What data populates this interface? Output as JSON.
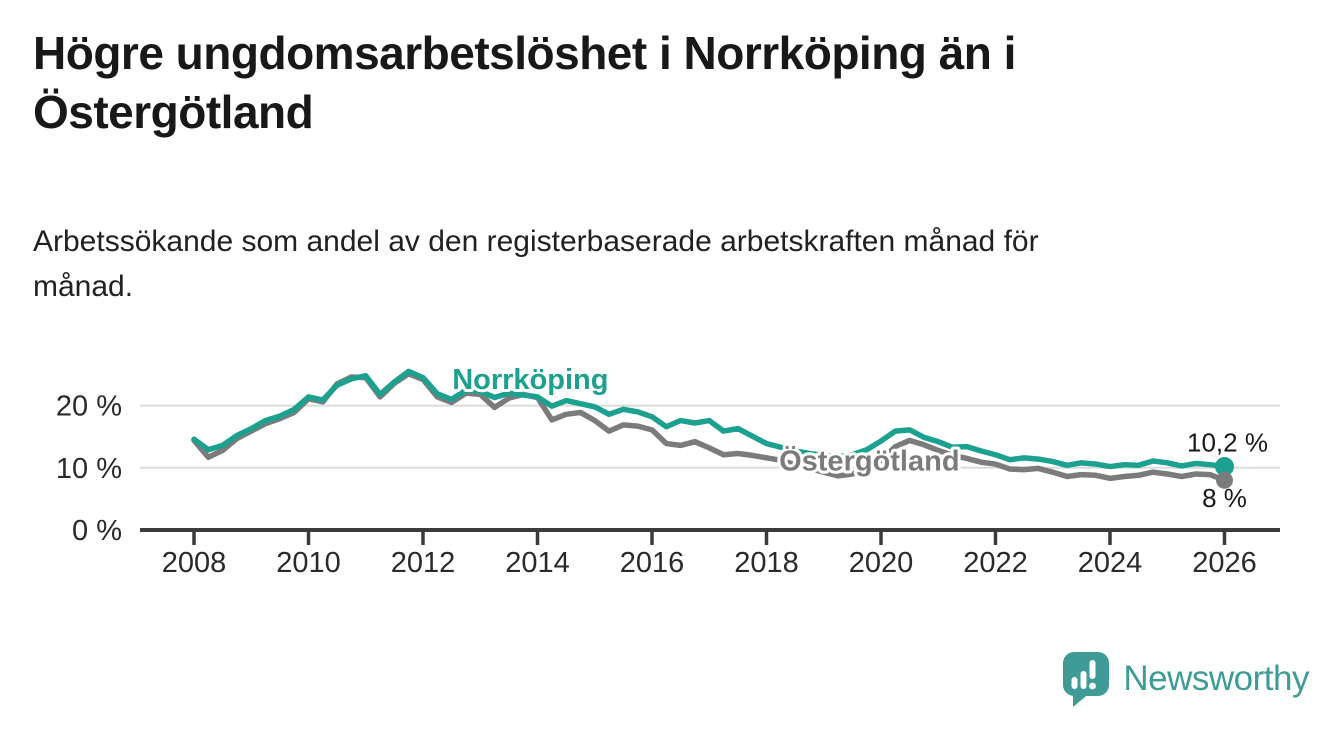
{
  "header": {
    "title_line1": "Högre ungdomsarbetslöshet i Norrköping än i",
    "title_line2": "Östergötland",
    "subtitle_line1": "Arbetssökande som andel av den registerbaserade arbetskraften månad för",
    "subtitle_line2": "månad."
  },
  "branding": {
    "logo_text": "Newsworthy"
  },
  "colors": {
    "accent_teal": "#1ca08f",
    "series_gray": "#7b7b7b",
    "grid": "#dbdbdb",
    "axis": "#3b3b3b",
    "text_dark": "#1a1a1a",
    "logo_teal": "#3e9b96"
  },
  "chart_data": {
    "type": "line",
    "title": "Högre ungdomsarbetslöshet i Norrköping än i Östergötland",
    "subtitle": "Arbetssökande som andel av den registerbaserade arbetskraften månad för månad.",
    "xlabel": "",
    "ylabel": "",
    "xlim": [
      2007.2,
      2027
    ],
    "ylim": [
      0,
      27
    ],
    "grid": "horizontal",
    "legend_position": "inline-labels",
    "xticks": [
      2008,
      2010,
      2012,
      2014,
      2016,
      2018,
      2020,
      2022,
      2024,
      2026
    ],
    "yticks": [
      {
        "value": 0,
        "label": "0 %"
      },
      {
        "value": 10,
        "label": "10 %"
      },
      {
        "value": 20,
        "label": "20 %"
      }
    ],
    "x": [
      2008,
      2008.25,
      2008.5,
      2008.75,
      2009,
      2009.25,
      2009.5,
      2009.75,
      2010,
      2010.25,
      2010.5,
      2010.75,
      2011,
      2011.25,
      2011.5,
      2011.75,
      2012,
      2012.25,
      2012.5,
      2012.75,
      2013,
      2013.25,
      2013.5,
      2013.75,
      2014,
      2014.25,
      2014.5,
      2014.75,
      2015,
      2015.25,
      2015.5,
      2015.75,
      2016,
      2016.25,
      2016.5,
      2016.75,
      2017,
      2017.25,
      2017.5,
      2017.75,
      2018,
      2018.25,
      2018.5,
      2018.75,
      2019,
      2019.25,
      2019.5,
      2019.75,
      2020,
      2020.25,
      2020.5,
      2020.75,
      2021,
      2021.25,
      2021.5,
      2021.75,
      2022,
      2022.25,
      2022.5,
      2022.75,
      2023,
      2023.25,
      2023.5,
      2023.75,
      2024,
      2024.25,
      2024.5,
      2024.75,
      2025,
      2025.25,
      2025.5,
      2025.75,
      2026
    ],
    "series": [
      {
        "name": "Norrköping",
        "color": "#1ca08f",
        "end_value": 10.2,
        "end_label": "10,2 %",
        "label_pos": {
          "x": 2012.51,
          "y": 22.7
        },
        "values": [
          14.6,
          12.9,
          13.6,
          15.2,
          16.3,
          17.6,
          18.3,
          19.4,
          21.4,
          20.9,
          23.3,
          24.3,
          24.8,
          21.8,
          23.8,
          25.5,
          24.5,
          21.9,
          21.0,
          22.5,
          22.3,
          21.3,
          22.0,
          21.7,
          21.4,
          19.9,
          20.8,
          20.3,
          19.8,
          18.6,
          19.4,
          19.0,
          18.2,
          16.6,
          17.6,
          17.2,
          17.6,
          15.9,
          16.3,
          15.1,
          13.9,
          13.3,
          12.7,
          12.3,
          12.0,
          11.8,
          12.1,
          12.9,
          14.3,
          15.9,
          16.1,
          14.9,
          14.2,
          13.3,
          13.4,
          12.7,
          12.1,
          11.3,
          11.6,
          11.4,
          11.0,
          10.4,
          10.8,
          10.6,
          10.2,
          10.5,
          10.4,
          11.1,
          10.8,
          10.3,
          10.7,
          10.5,
          10.2
        ]
      },
      {
        "name": "Östergötland",
        "color": "#7b7b7b",
        "end_value": 8.0,
        "end_label": "8 %",
        "label_pos": {
          "x": 2018.22,
          "y": 9.6
        },
        "values": [
          14.4,
          11.7,
          12.8,
          14.7,
          15.9,
          17.1,
          17.9,
          18.9,
          21.1,
          20.6,
          23.5,
          24.6,
          24.5,
          21.4,
          23.6,
          25.1,
          24.2,
          21.4,
          20.5,
          22.0,
          21.8,
          19.7,
          21.2,
          21.8,
          21.3,
          17.7,
          18.6,
          18.9,
          17.6,
          15.9,
          16.9,
          16.7,
          16.1,
          13.9,
          13.6,
          14.2,
          13.2,
          12.1,
          12.3,
          12.0,
          11.6,
          11.2,
          10.5,
          9.9,
          9.3,
          8.7,
          9.0,
          9.8,
          11.2,
          13.4,
          14.4,
          13.7,
          12.8,
          12.0,
          11.5,
          10.9,
          10.6,
          9.8,
          9.7,
          9.9,
          9.3,
          8.6,
          8.9,
          8.8,
          8.3,
          8.6,
          8.8,
          9.3,
          9.0,
          8.6,
          9.0,
          8.9,
          8.0
        ]
      }
    ]
  }
}
